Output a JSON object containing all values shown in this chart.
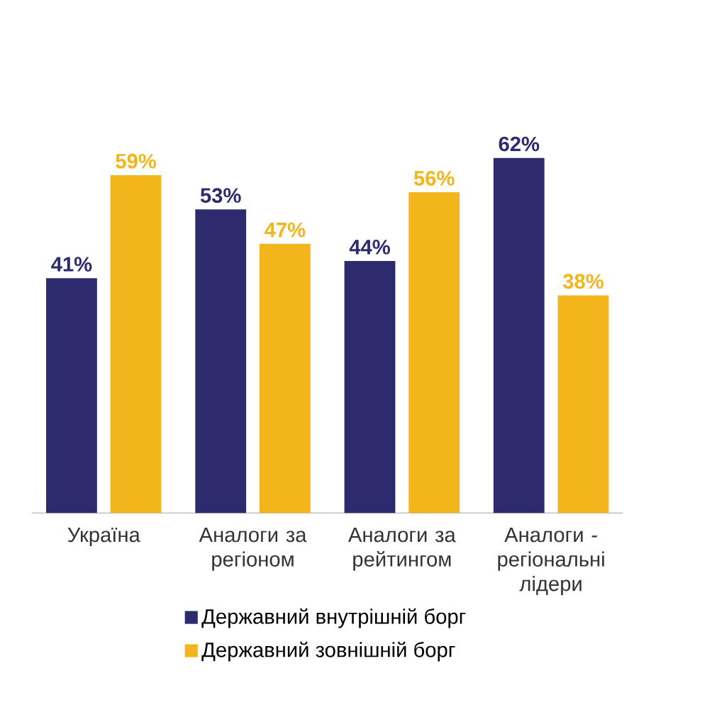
{
  "chart_data": {
    "type": "bar",
    "categories": [
      "Україна",
      "Аналоги за регіоном",
      "Аналоги за рейтингом",
      "Аналоги - регіональні лідери"
    ],
    "series": [
      {
        "name": "Державний внутрішній борг",
        "color": "#2e2a6e",
        "values": [
          41,
          53,
          44,
          62
        ],
        "value_labels": [
          "41%",
          "53%",
          "44%",
          "62%"
        ]
      },
      {
        "name": "Державний зовнішній борг",
        "color": "#f2b51c",
        "values": [
          59,
          47,
          56,
          38
        ],
        "value_labels": [
          "59%",
          "47%",
          "56%",
          "38%"
        ]
      }
    ],
    "legend": "bottom"
  }
}
